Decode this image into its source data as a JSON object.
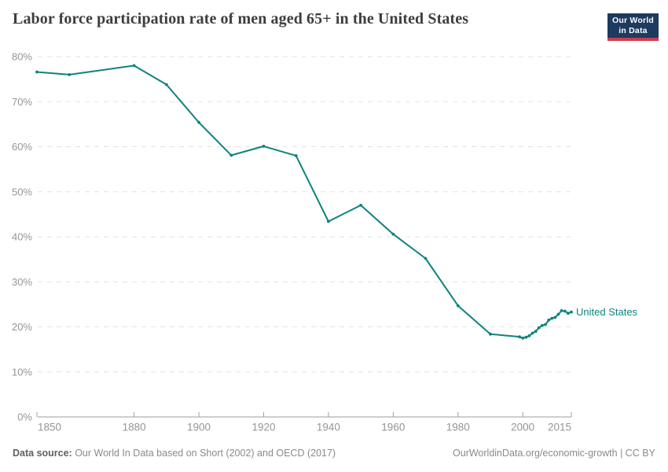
{
  "header": {
    "title": "Labor force participation rate of men aged 65+ in the United States",
    "logo": {
      "line1": "Our World",
      "line2": "in Data",
      "bg_color": "#1d3a5f",
      "bar_color": "#d23b4e"
    }
  },
  "chart_data": {
    "type": "line",
    "title": "Labor force participation rate of men aged 65+ in the United States",
    "xlabel": "",
    "ylabel": "",
    "xlim": [
      1850,
      2015
    ],
    "ylim": [
      0,
      80
    ],
    "x_ticks": [
      1850,
      1880,
      1900,
      1920,
      1940,
      1960,
      1980,
      2000,
      2015
    ],
    "y_ticks": [
      0,
      10,
      20,
      30,
      40,
      50,
      60,
      70,
      80
    ],
    "y_tick_suffix": "%",
    "grid": "horizontal-dashed",
    "legend_position": "end-of-line",
    "colors": {
      "grid": "#e2e2e2",
      "axis": "#9e9e9e",
      "tick_label": "#959595"
    },
    "series": [
      {
        "name": "United States",
        "color": "#0d837c",
        "points": [
          [
            1850,
            76.6
          ],
          [
            1860,
            76.0
          ],
          [
            1880,
            78.0
          ],
          [
            1890,
            73.8
          ],
          [
            1900,
            65.4
          ],
          [
            1910,
            58.1
          ],
          [
            1920,
            60.1
          ],
          [
            1930,
            58.0
          ],
          [
            1940,
            43.4
          ],
          [
            1950,
            47.0
          ],
          [
            1960,
            40.6
          ],
          [
            1970,
            35.2
          ],
          [
            1980,
            24.7
          ],
          [
            1990,
            18.4
          ],
          [
            1999,
            17.8
          ],
          [
            2000,
            17.5
          ],
          [
            2001,
            17.7
          ],
          [
            2002,
            18.0
          ],
          [
            2003,
            18.6
          ],
          [
            2004,
            19.0
          ],
          [
            2005,
            19.8
          ],
          [
            2006,
            20.3
          ],
          [
            2007,
            20.5
          ],
          [
            2008,
            21.5
          ],
          [
            2009,
            21.9
          ],
          [
            2010,
            22.1
          ],
          [
            2011,
            22.8
          ],
          [
            2012,
            23.6
          ],
          [
            2013,
            23.5
          ],
          [
            2014,
            23.0
          ],
          [
            2015,
            23.3
          ]
        ]
      }
    ]
  },
  "footer": {
    "source_label": "Data source:",
    "source_text": " Our World In Data based on Short (2002) and OECD (2017)",
    "link_text": "OurWorldinData.org/economic-growth | CC BY"
  }
}
